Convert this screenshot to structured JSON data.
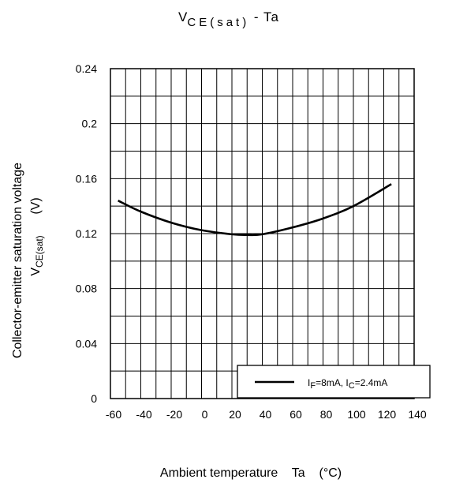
{
  "chart_data": {
    "type": "line",
    "title": {
      "main": "V",
      "main_sub": "CE(sat)",
      "rest": " - Ta"
    },
    "xlabel": "Ambient temperature    Ta    (°C)",
    "ylabel": {
      "line1": "Collector-emitter saturation voltage",
      "line2_main": "V",
      "line2_sub": "CE(sat)",
      "line2_rest": "(V)"
    },
    "xlim": [
      -60,
      140
    ],
    "ylim": [
      0,
      0.24
    ],
    "x_ticks": [
      -60,
      -40,
      -20,
      0,
      20,
      40,
      60,
      80,
      100,
      120,
      140
    ],
    "y_ticks": [
      0,
      0.04,
      0.08,
      0.12,
      0.16,
      0.2,
      0.24
    ],
    "y_tick_labels": [
      "0",
      "0.04",
      "0.08",
      "0.12",
      "0.16",
      "0.2",
      "0.24"
    ],
    "grid": true,
    "legend_position": "bottom-right",
    "series": [
      {
        "name": "IF=8mA, IC=2.4mA",
        "legend": {
          "p1": "I",
          "s1": "F",
          "p2": "=8mA, I",
          "s2": "C",
          "p3": "=2.4mA"
        },
        "x": [
          -55,
          -40,
          -20,
          0,
          20,
          30,
          40,
          60,
          80,
          100,
          125
        ],
        "values": [
          0.144,
          0.136,
          0.128,
          0.1225,
          0.1195,
          0.119,
          0.1195,
          0.1245,
          0.131,
          0.14,
          0.156
        ]
      }
    ]
  }
}
